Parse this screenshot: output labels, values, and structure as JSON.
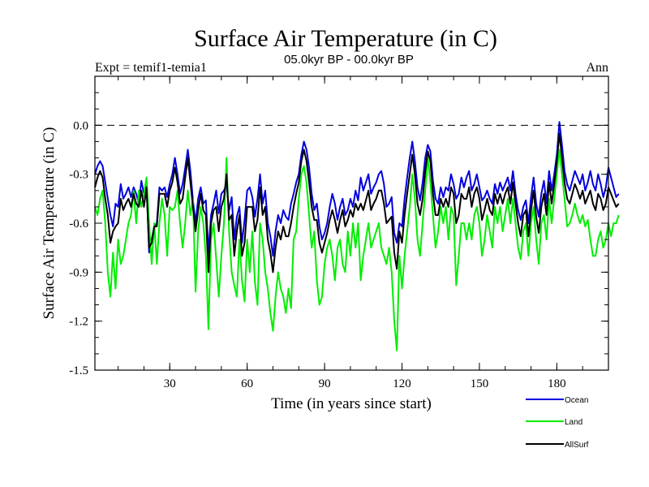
{
  "chart_data": {
    "type": "line",
    "title": "Surface Air Temperature (in C)",
    "subtitle": "05.0kyr BP - 00.0kyr BP",
    "left_label": "Expt = temif1-temia1",
    "right_label": "Ann",
    "xlabel": "Time (in years since start)",
    "ylabel": "Surface Air Temperature (in C)",
    "xlim": [
      1,
      200
    ],
    "ylim": [
      -1.5,
      0.3
    ],
    "xticks": [
      30,
      60,
      90,
      120,
      150,
      180
    ],
    "yticks": [
      0.0,
      -0.3,
      -0.6,
      -0.9,
      -1.2,
      -1.5
    ],
    "ytick_labels": [
      "0.0",
      "-0.3",
      "-0.6",
      "-0.9",
      "-1.2",
      "-1.5"
    ],
    "reference_line": 0.0,
    "legend_position": "bottom-right",
    "series": [
      {
        "name": "Ocean",
        "color": "#0000dd",
        "values": [
          -0.3,
          -0.25,
          -0.22,
          -0.25,
          -0.35,
          -0.45,
          -0.55,
          -0.62,
          -0.48,
          -0.5,
          -0.36,
          -0.45,
          -0.42,
          -0.38,
          -0.44,
          -0.38,
          -0.42,
          -0.48,
          -0.34,
          -0.42,
          -0.36,
          -0.78,
          -0.7,
          -0.62,
          -0.6,
          -0.38,
          -0.4,
          -0.38,
          -0.44,
          -0.36,
          -0.3,
          -0.2,
          -0.3,
          -0.42,
          -0.36,
          -0.26,
          -0.15,
          -0.28,
          -0.46,
          -0.6,
          -0.45,
          -0.38,
          -0.48,
          -0.46,
          -0.78,
          -0.55,
          -0.48,
          -0.4,
          -0.54,
          -0.42,
          -0.4,
          -0.36,
          -0.52,
          -0.44,
          -0.7,
          -0.56,
          -0.5,
          -0.72,
          -0.58,
          -0.4,
          -0.38,
          -0.44,
          -0.56,
          -0.45,
          -0.3,
          -0.48,
          -0.4,
          -0.6,
          -0.68,
          -0.8,
          -0.65,
          -0.55,
          -0.6,
          -0.52,
          -0.56,
          -0.58,
          -0.48,
          -0.42,
          -0.35,
          -0.3,
          -0.18,
          -0.1,
          -0.15,
          -0.26,
          -0.42,
          -0.52,
          -0.48,
          -0.62,
          -0.7,
          -0.66,
          -0.6,
          -0.5,
          -0.42,
          -0.48,
          -0.58,
          -0.5,
          -0.45,
          -0.55,
          -0.52,
          -0.45,
          -0.5,
          -0.4,
          -0.46,
          -0.32,
          -0.4,
          -0.35,
          -0.3,
          -0.42,
          -0.38,
          -0.35,
          -0.3,
          -0.28,
          -0.36,
          -0.5,
          -0.48,
          -0.44,
          -0.66,
          -0.72,
          -0.6,
          -0.62,
          -0.45,
          -0.32,
          -0.2,
          -0.1,
          -0.22,
          -0.38,
          -0.46,
          -0.35,
          -0.2,
          -0.12,
          -0.16,
          -0.34,
          -0.45,
          -0.48,
          -0.38,
          -0.44,
          -0.38,
          -0.4,
          -0.3,
          -0.36,
          -0.45,
          -0.42,
          -0.32,
          -0.38,
          -0.32,
          -0.28,
          -0.4,
          -0.36,
          -0.3,
          -0.38,
          -0.46,
          -0.44,
          -0.4,
          -0.45,
          -0.48,
          -0.36,
          -0.42,
          -0.35,
          -0.4,
          -0.36,
          -0.32,
          -0.4,
          -0.28,
          -0.42,
          -0.52,
          -0.58,
          -0.5,
          -0.46,
          -0.6,
          -0.44,
          -0.32,
          -0.48,
          -0.56,
          -0.42,
          -0.34,
          -0.48,
          -0.28,
          -0.4,
          -0.3,
          -0.18,
          0.02,
          -0.12,
          -0.28,
          -0.36,
          -0.4,
          -0.34,
          -0.28,
          -0.32,
          -0.36,
          -0.3,
          -0.4,
          -0.35,
          -0.28,
          -0.36,
          -0.4,
          -0.3,
          -0.36,
          -0.44,
          -0.38,
          -0.26,
          -0.32,
          -0.38,
          -0.44,
          -0.42
        ]
      },
      {
        "name": "Land",
        "color": "#00ee00",
        "values": [
          -0.5,
          -0.55,
          -0.45,
          -0.4,
          -0.6,
          -0.9,
          -1.05,
          -0.78,
          -1.0,
          -0.7,
          -0.85,
          -0.8,
          -0.7,
          -0.6,
          -0.55,
          -0.4,
          -0.6,
          -0.4,
          -0.5,
          -0.42,
          -0.32,
          -0.6,
          -0.85,
          -0.6,
          -0.85,
          -0.6,
          -0.45,
          -0.55,
          -0.8,
          -0.5,
          -0.52,
          -0.5,
          -0.4,
          -0.6,
          -0.75,
          -0.6,
          -0.4,
          -0.55,
          -0.45,
          -1.02,
          -0.65,
          -0.5,
          -0.6,
          -0.8,
          -1.25,
          -0.7,
          -0.6,
          -0.82,
          -1.05,
          -0.8,
          -0.6,
          -0.2,
          -0.65,
          -0.9,
          -0.98,
          -1.05,
          -0.7,
          -0.95,
          -1.08,
          -0.7,
          -0.9,
          -0.65,
          -0.96,
          -1.1,
          -0.6,
          -0.7,
          -0.9,
          -1.0,
          -1.15,
          -1.26,
          -1.05,
          -0.9,
          -1.0,
          -1.05,
          -1.15,
          -1.0,
          -1.12,
          -0.7,
          -0.65,
          -0.45,
          -0.3,
          -0.25,
          -0.35,
          -0.55,
          -0.75,
          -0.65,
          -0.95,
          -1.1,
          -1.05,
          -0.85,
          -0.75,
          -0.7,
          -0.8,
          -0.95,
          -0.75,
          -0.7,
          -0.85,
          -0.9,
          -0.65,
          -0.8,
          -0.6,
          -0.75,
          -0.6,
          -0.95,
          -0.8,
          -0.7,
          -0.6,
          -0.75,
          -0.7,
          -0.65,
          -0.6,
          -0.75,
          -0.8,
          -0.85,
          -0.75,
          -0.9,
          -1.2,
          -1.38,
          -0.8,
          -1.0,
          -0.8,
          -0.65,
          -0.5,
          -0.3,
          -0.45,
          -0.7,
          -0.8,
          -0.6,
          -0.4,
          -0.2,
          -0.35,
          -0.55,
          -0.75,
          -0.65,
          -0.5,
          -0.6,
          -0.5,
          -0.7,
          -0.5,
          -0.55,
          -0.98,
          -0.8,
          -0.6,
          -0.6,
          -0.7,
          -0.6,
          -0.7,
          -0.55,
          -0.5,
          -0.6,
          -0.8,
          -0.7,
          -0.55,
          -0.65,
          -0.75,
          -0.5,
          -0.6,
          -0.5,
          -0.65,
          -0.55,
          -0.45,
          -0.6,
          -0.45,
          -0.6,
          -0.75,
          -0.82,
          -0.65,
          -0.6,
          -0.8,
          -0.6,
          -0.5,
          -0.7,
          -0.85,
          -0.6,
          -0.55,
          -0.7,
          -0.45,
          -0.6,
          -0.45,
          -0.3,
          -0.15,
          -0.3,
          -0.45,
          -0.62,
          -0.6,
          -0.55,
          -0.48,
          -0.55,
          -0.6,
          -0.55,
          -0.62,
          -0.58,
          -0.7,
          -0.8,
          -0.8,
          -0.7,
          -0.65,
          -0.75,
          -0.7,
          -0.6,
          -0.68,
          -0.6,
          -0.6,
          -0.55
        ]
      },
      {
        "name": "AllSurf",
        "color": "#000000",
        "values": [
          -0.38,
          -0.32,
          -0.28,
          -0.32,
          -0.45,
          -0.55,
          -0.72,
          -0.65,
          -0.62,
          -0.6,
          -0.45,
          -0.52,
          -0.48,
          -0.45,
          -0.5,
          -0.42,
          -0.48,
          -0.5,
          -0.4,
          -0.5,
          -0.38,
          -0.75,
          -0.72,
          -0.62,
          -0.62,
          -0.42,
          -0.42,
          -0.42,
          -0.5,
          -0.4,
          -0.35,
          -0.26,
          -0.35,
          -0.48,
          -0.45,
          -0.32,
          -0.2,
          -0.35,
          -0.5,
          -0.65,
          -0.52,
          -0.42,
          -0.52,
          -0.55,
          -0.9,
          -0.6,
          -0.52,
          -0.5,
          -0.65,
          -0.5,
          -0.45,
          -0.3,
          -0.58,
          -0.55,
          -0.8,
          -0.65,
          -0.55,
          -0.8,
          -0.72,
          -0.5,
          -0.5,
          -0.5,
          -0.65,
          -0.58,
          -0.38,
          -0.55,
          -0.5,
          -0.7,
          -0.78,
          -0.9,
          -0.75,
          -0.65,
          -0.7,
          -0.62,
          -0.68,
          -0.68,
          -0.6,
          -0.5,
          -0.42,
          -0.35,
          -0.22,
          -0.15,
          -0.22,
          -0.35,
          -0.5,
          -0.58,
          -0.58,
          -0.72,
          -0.78,
          -0.72,
          -0.66,
          -0.58,
          -0.52,
          -0.58,
          -0.66,
          -0.58,
          -0.52,
          -0.62,
          -0.58,
          -0.52,
          -0.56,
          -0.48,
          -0.52,
          -0.48,
          -0.52,
          -0.46,
          -0.4,
          -0.52,
          -0.48,
          -0.45,
          -0.4,
          -0.4,
          -0.48,
          -0.6,
          -0.58,
          -0.56,
          -0.78,
          -0.88,
          -0.65,
          -0.72,
          -0.55,
          -0.42,
          -0.3,
          -0.18,
          -0.3,
          -0.48,
          -0.55,
          -0.45,
          -0.28,
          -0.16,
          -0.22,
          -0.42,
          -0.55,
          -0.55,
          -0.45,
          -0.5,
          -0.45,
          -0.5,
          -0.38,
          -0.42,
          -0.6,
          -0.55,
          -0.42,
          -0.45,
          -0.45,
          -0.38,
          -0.5,
          -0.42,
          -0.38,
          -0.45,
          -0.58,
          -0.52,
          -0.45,
          -0.52,
          -0.55,
          -0.42,
          -0.48,
          -0.42,
          -0.48,
          -0.42,
          -0.38,
          -0.48,
          -0.35,
          -0.48,
          -0.6,
          -0.68,
          -0.55,
          -0.52,
          -0.68,
          -0.52,
          -0.4,
          -0.56,
          -0.66,
          -0.5,
          -0.42,
          -0.55,
          -0.35,
          -0.48,
          -0.36,
          -0.22,
          -0.05,
          -0.2,
          -0.35,
          -0.45,
          -0.48,
          -0.42,
          -0.36,
          -0.4,
          -0.45,
          -0.4,
          -0.48,
          -0.44,
          -0.4,
          -0.48,
          -0.52,
          -0.42,
          -0.45,
          -0.52,
          -0.48,
          -0.38,
          -0.42,
          -0.46,
          -0.5,
          -0.48
        ]
      }
    ]
  }
}
